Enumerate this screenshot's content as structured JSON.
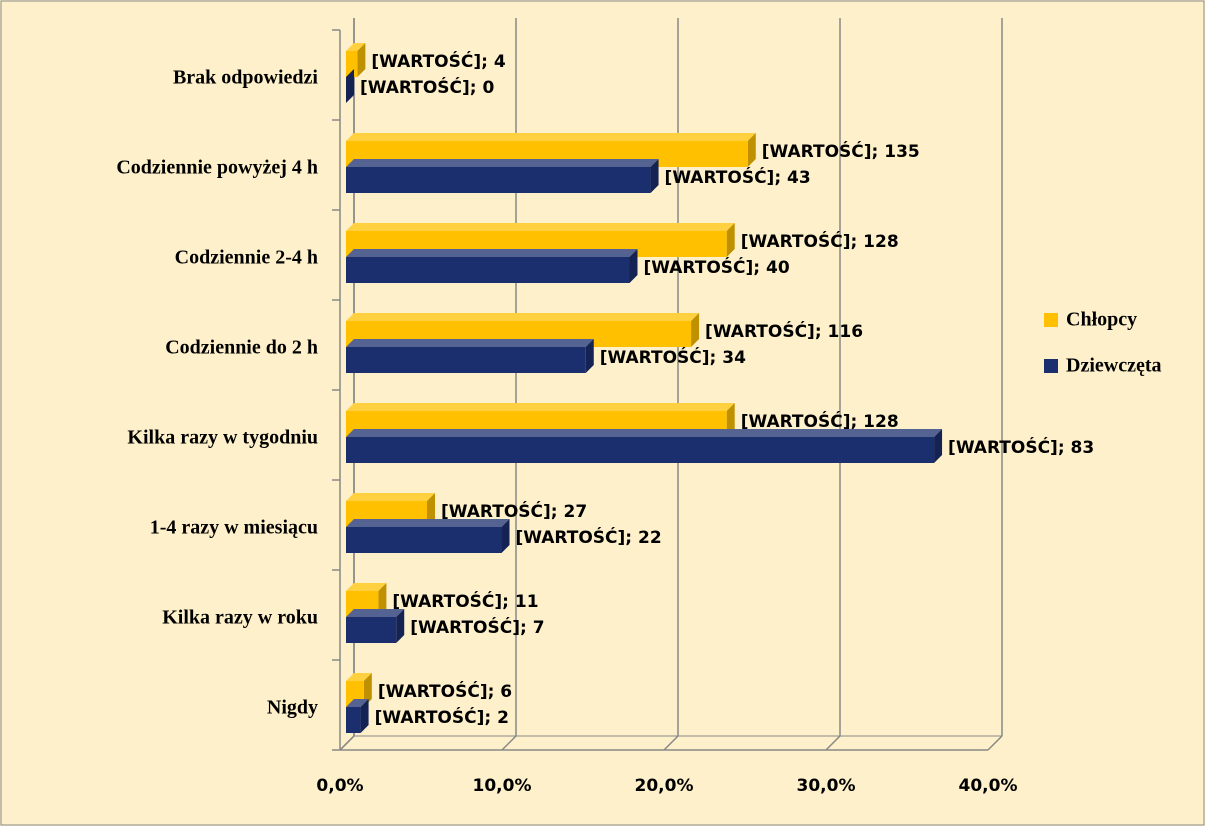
{
  "chart_data": {
    "type": "bar",
    "orientation": "horizontal",
    "categories": [
      "Brak odpowiedzi",
      "Codziennie powyżej 4 h",
      "Codziennie 2-4 h",
      "Codziennie do 2 h",
      "Kilka razy w tygodniu",
      "1-4 razy w miesiącu",
      "Kilka razy w roku",
      "Nigdy"
    ],
    "series": [
      {
        "name": "Chłopcy",
        "color": "#ffc000",
        "values": [
          0.7,
          24.8,
          23.5,
          21.3,
          23.5,
          5.0,
          2.0,
          1.1
        ],
        "labels": [
          "[WARTOŚĆ]; 4",
          "[WARTOŚĆ]; 135",
          "[WARTOŚĆ]; 128",
          "[WARTOŚĆ]; 116",
          "[WARTOŚĆ]; 128",
          "[WARTOŚĆ]; 27",
          "[WARTOŚĆ]; 11",
          "[WARTOŚĆ]; 6"
        ]
      },
      {
        "name": "Dziewczęta",
        "color": "#1b2f6e",
        "values": [
          0,
          18.8,
          17.5,
          14.8,
          36.3,
          9.6,
          3.1,
          0.9
        ],
        "labels": [
          "[WARTOŚĆ]; 0",
          "[WARTOŚĆ]; 43",
          "[WARTOŚĆ]; 40",
          "[WARTOŚĆ]; 34",
          "[WARTOŚĆ]; 83",
          "[WARTOŚĆ]; 22",
          "[WARTOŚĆ]; 7",
          "[WARTOŚĆ]; 2"
        ]
      }
    ],
    "xlim": [
      0,
      40
    ],
    "xticks": [
      {
        "value": 0,
        "label": "0,0%"
      },
      {
        "value": 10,
        "label": "10,0%"
      },
      {
        "value": 20,
        "label": "20,0%"
      },
      {
        "value": 30,
        "label": "30,0%"
      },
      {
        "value": 40,
        "label": "40,0%"
      }
    ],
    "grid": true,
    "legend": "right"
  }
}
